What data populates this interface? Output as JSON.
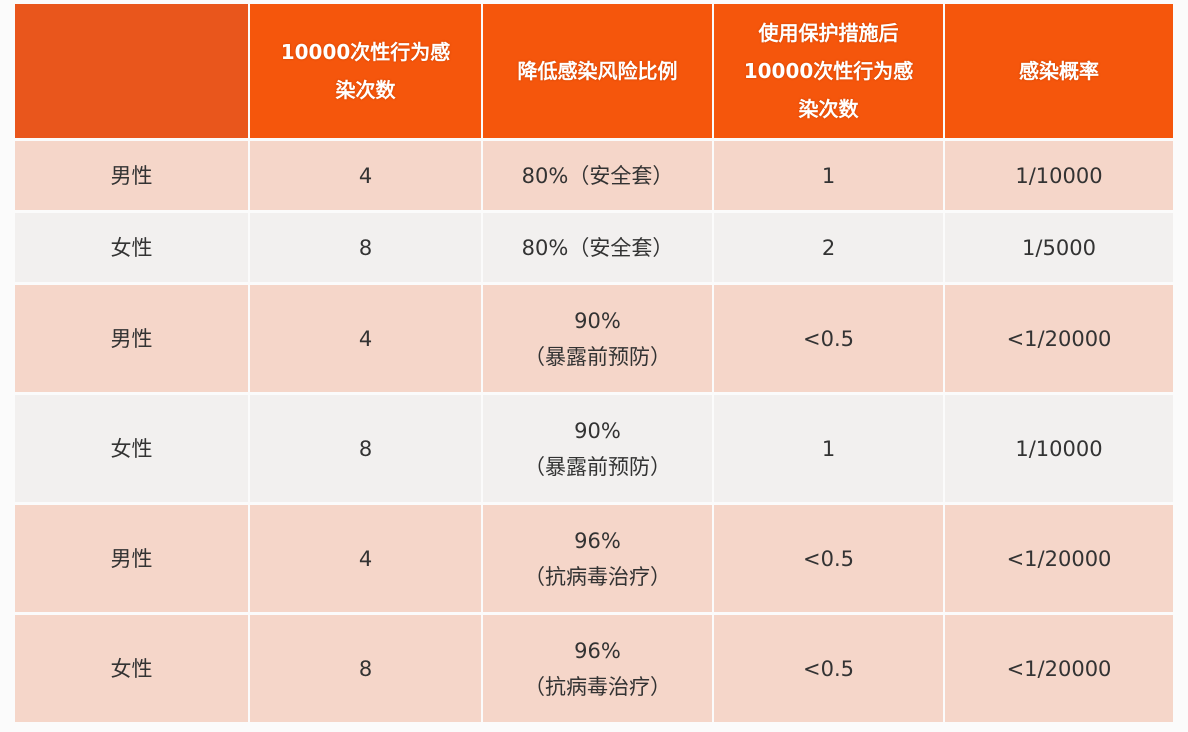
{
  "chart_data": {
    "type": "table",
    "columns": [
      "",
      "10000次性行为感染次数",
      "降低感染风险比例",
      "使用保护措施后10000次性行为感染次数",
      "感染概率"
    ],
    "header_lines": [
      [
        ""
      ],
      [
        "10000次性行为感",
        "染次数"
      ],
      [
        "降低感染风险比例"
      ],
      [
        "使用保护措施后",
        "10000次性行为感",
        "染次数"
      ],
      [
        "感染概率"
      ]
    ],
    "rows": [
      {
        "sex": "男性",
        "count": "4",
        "reduction": [
          "80%（安全套）"
        ],
        "after": "1",
        "prob": "1/10000"
      },
      {
        "sex": "女性",
        "count": "8",
        "reduction": [
          "80%（安全套）"
        ],
        "after": "2",
        "prob": "1/5000"
      },
      {
        "sex": "男性",
        "count": "4",
        "reduction": [
          "90%",
          "（暴露前预防）"
        ],
        "after": "<0.5",
        "prob": "<1/20000"
      },
      {
        "sex": "女性",
        "count": "8",
        "reduction": [
          "90%",
          "（暴露前预防）"
        ],
        "after": "1",
        "prob": "1/10000"
      },
      {
        "sex": "男性",
        "count": "4",
        "reduction": [
          "96%",
          "（抗病毒治疗）"
        ],
        "after": "<0.5",
        "prob": "<1/20000"
      },
      {
        "sex": "女性",
        "count": "8",
        "reduction": [
          "96%",
          "（抗病毒治疗）"
        ],
        "after": "<0.5",
        "prob": "<1/20000"
      }
    ],
    "colors": {
      "header": "#f5560c",
      "row_pink": "#f5d6c9",
      "row_grey": "#f2f0ef",
      "header_text": "#ffffff"
    }
  }
}
